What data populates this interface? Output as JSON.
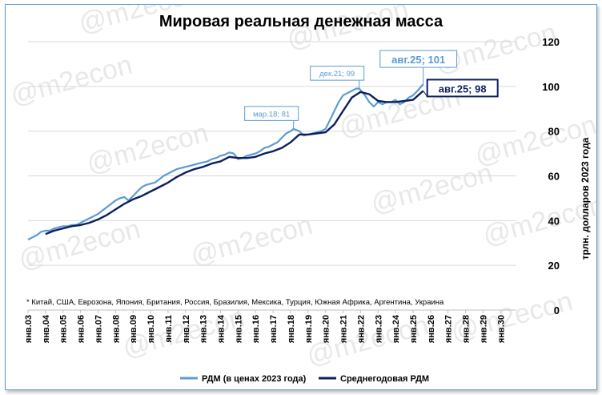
{
  "chart_data": {
    "type": "line",
    "title": "Мировая реальная денежная масса",
    "ylabel": "трлн. долларов 2023 года",
    "ylim": [
      0,
      120
    ],
    "yticks": [
      0,
      20,
      40,
      60,
      80,
      100,
      120
    ],
    "xlim": [
      2003,
      2030.9
    ],
    "x_tick_labels": [
      "янв.03",
      "янв.04",
      "янв.05",
      "янв.06",
      "янв.07",
      "янв.08",
      "янв.09",
      "янв.10",
      "янв.11",
      "янв.12",
      "янв.13",
      "янв.14",
      "янв.15",
      "янв.16",
      "янв.17",
      "янв.18",
      "янв.19",
      "янв.20",
      "янв.21",
      "янв.22",
      "янв.23",
      "янв.24",
      "янв.25",
      "янв.26",
      "янв.27",
      "янв.28",
      "янв.29",
      "янв.30"
    ],
    "footnote": "* Китай, США, Еврозона, Япония, Британия, Россия, Бразилия, Мексика, Турция, Южная Африка, Аргентина, Украина",
    "watermark": "@m2econ",
    "legend_position": "bottom",
    "series": [
      {
        "name": "РДМ (в ценах 2023 года)",
        "color": "#5b9bd5",
        "x": [
          2003.0,
          2003.25,
          2003.5,
          2003.75,
          2004.0,
          2004.25,
          2004.5,
          2004.75,
          2005.0,
          2005.25,
          2005.5,
          2005.75,
          2006.0,
          2006.25,
          2006.5,
          2006.75,
          2007.0,
          2007.25,
          2007.5,
          2007.75,
          2008.0,
          2008.25,
          2008.5,
          2008.75,
          2009.0,
          2009.25,
          2009.5,
          2009.75,
          2010.0,
          2010.25,
          2010.5,
          2010.75,
          2011.0,
          2011.25,
          2011.5,
          2011.75,
          2012.0,
          2012.25,
          2012.5,
          2012.75,
          2013.0,
          2013.25,
          2013.5,
          2013.75,
          2014.0,
          2014.25,
          2014.5,
          2014.75,
          2015.0,
          2015.25,
          2015.5,
          2015.75,
          2016.0,
          2016.25,
          2016.5,
          2016.75,
          2017.0,
          2017.25,
          2017.5,
          2017.75,
          2018.0,
          2018.17,
          2018.5,
          2018.75,
          2019.0,
          2019.25,
          2019.5,
          2019.75,
          2020.0,
          2020.25,
          2020.5,
          2020.75,
          2021.0,
          2021.25,
          2021.5,
          2021.75,
          2021.92,
          2022.25,
          2022.5,
          2022.75,
          2023.0,
          2023.25,
          2023.5,
          2023.75,
          2024.0,
          2024.25,
          2024.5,
          2024.75,
          2025.0,
          2025.25,
          2025.58
        ],
        "y": [
          31.5,
          32.5,
          33.5,
          35,
          35.5,
          35.5,
          36.5,
          37,
          37.5,
          37.5,
          38,
          38,
          39,
          40,
          41,
          42,
          43,
          44.5,
          46,
          47.5,
          49,
          50,
          50.5,
          49,
          51,
          53,
          55,
          56,
          56.5,
          57,
          58.5,
          60,
          61,
          62,
          63,
          63.5,
          64,
          64.5,
          65,
          65.5,
          66,
          66.5,
          67.5,
          68,
          69,
          69.5,
          70.5,
          70,
          67.5,
          68,
          69,
          69.5,
          70,
          71,
          72.5,
          73,
          74,
          75,
          77,
          79,
          80,
          81,
          80,
          78,
          78.5,
          79,
          79.5,
          80,
          81,
          85,
          89,
          93,
          96,
          97,
          98,
          99,
          99,
          96,
          93,
          91,
          93,
          92,
          93,
          93,
          94,
          92,
          93,
          95,
          96,
          98,
          101
        ]
      },
      {
        "name": "Среднегодовая РДМ",
        "color": "#0d1f5c",
        "x": [
          2004.0,
          2004.5,
          2005.0,
          2005.5,
          2006.0,
          2006.5,
          2007.0,
          2007.5,
          2008.0,
          2008.5,
          2009.0,
          2009.5,
          2010.0,
          2010.5,
          2011.0,
          2011.5,
          2012.0,
          2012.5,
          2013.0,
          2013.5,
          2014.0,
          2014.5,
          2015.0,
          2015.5,
          2016.0,
          2016.5,
          2017.0,
          2017.5,
          2018.0,
          2018.5,
          2019.0,
          2019.5,
          2020.0,
          2020.5,
          2021.0,
          2021.5,
          2022.0,
          2022.5,
          2023.0,
          2023.5,
          2024.0,
          2024.5,
          2025.0,
          2025.58
        ],
        "y": [
          34,
          35.5,
          36.5,
          37.5,
          38,
          39,
          40.5,
          42.5,
          45,
          47.5,
          49.5,
          51,
          53,
          55,
          57,
          59.5,
          61.5,
          63,
          64,
          65.5,
          66.5,
          68.5,
          68,
          68,
          68.5,
          70,
          71,
          72.5,
          75,
          78.5,
          78.5,
          79,
          79.5,
          83,
          89,
          95,
          97.5,
          96.5,
          93.5,
          93,
          93,
          93.5,
          94,
          98
        ]
      }
    ],
    "annotations": [
      {
        "text": "мар.18; 81",
        "series": 0,
        "x": 2018.17,
        "y": 81,
        "style": "light"
      },
      {
        "text": "дек.21; 99",
        "series": 0,
        "x": 2021.92,
        "y": 99,
        "style": "light"
      },
      {
        "text": "авг.25; 101",
        "series": 0,
        "x": 2025.58,
        "y": 101,
        "style": "light-bold"
      },
      {
        "text": "авг.25; 98",
        "series": 1,
        "x": 2025.58,
        "y": 98,
        "style": "dark-bold"
      }
    ]
  }
}
